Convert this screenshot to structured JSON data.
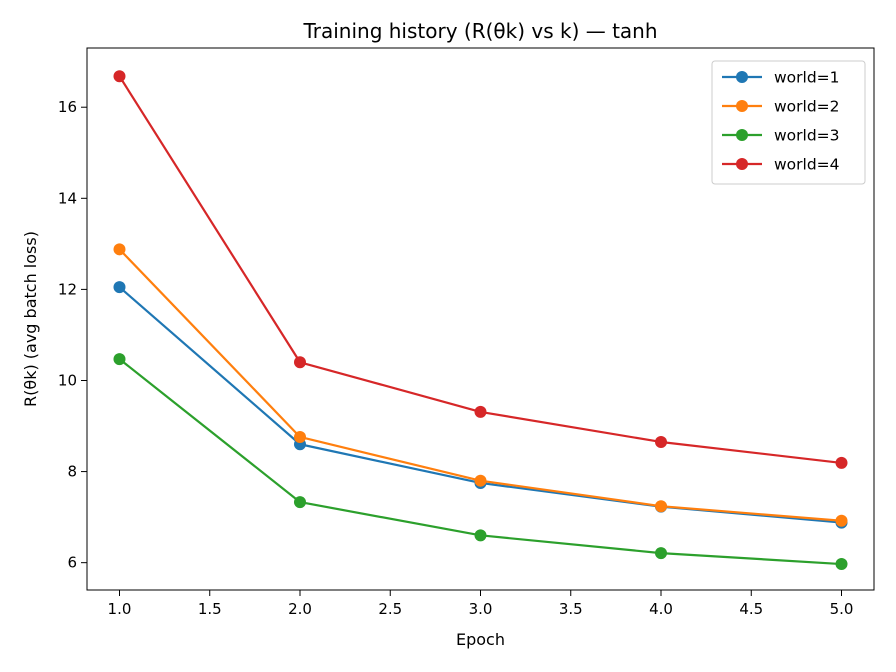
{
  "chart_data": {
    "type": "line",
    "title": "Training history (R(θk) vs k) — tanh",
    "xlabel": "Epoch",
    "ylabel": "R(θk)  (avg batch loss)",
    "x": [
      1.0,
      2.0,
      3.0,
      4.0,
      5.0
    ],
    "xlim": [
      0.82,
      5.18
    ],
    "ylim": [
      5.4,
      17.3
    ],
    "xticks": [
      1.0,
      1.5,
      2.0,
      2.5,
      3.0,
      3.5,
      4.0,
      4.5,
      5.0
    ],
    "xtick_labels": [
      "1.0",
      "1.5",
      "2.0",
      "2.5",
      "3.0",
      "3.5",
      "4.0",
      "4.5",
      "5.0"
    ],
    "yticks": [
      6,
      8,
      10,
      12,
      14,
      16
    ],
    "ytick_labels": [
      "6",
      "8",
      "10",
      "12",
      "14",
      "16"
    ],
    "grid": false,
    "legend_position": "top-right",
    "marker": "circle",
    "series": [
      {
        "name": "world=1",
        "color": "#1f77b4",
        "values": [
          12.05,
          8.6,
          7.75,
          7.23,
          6.88
        ]
      },
      {
        "name": "world=2",
        "color": "#ff7f0e",
        "values": [
          12.88,
          8.76,
          7.8,
          7.24,
          6.92
        ]
      },
      {
        "name": "world=3",
        "color": "#2ca02c",
        "values": [
          10.47,
          7.33,
          6.6,
          6.21,
          5.97
        ]
      },
      {
        "name": "world=4",
        "color": "#d62728",
        "values": [
          16.68,
          10.4,
          9.31,
          8.65,
          8.19
        ]
      }
    ]
  }
}
